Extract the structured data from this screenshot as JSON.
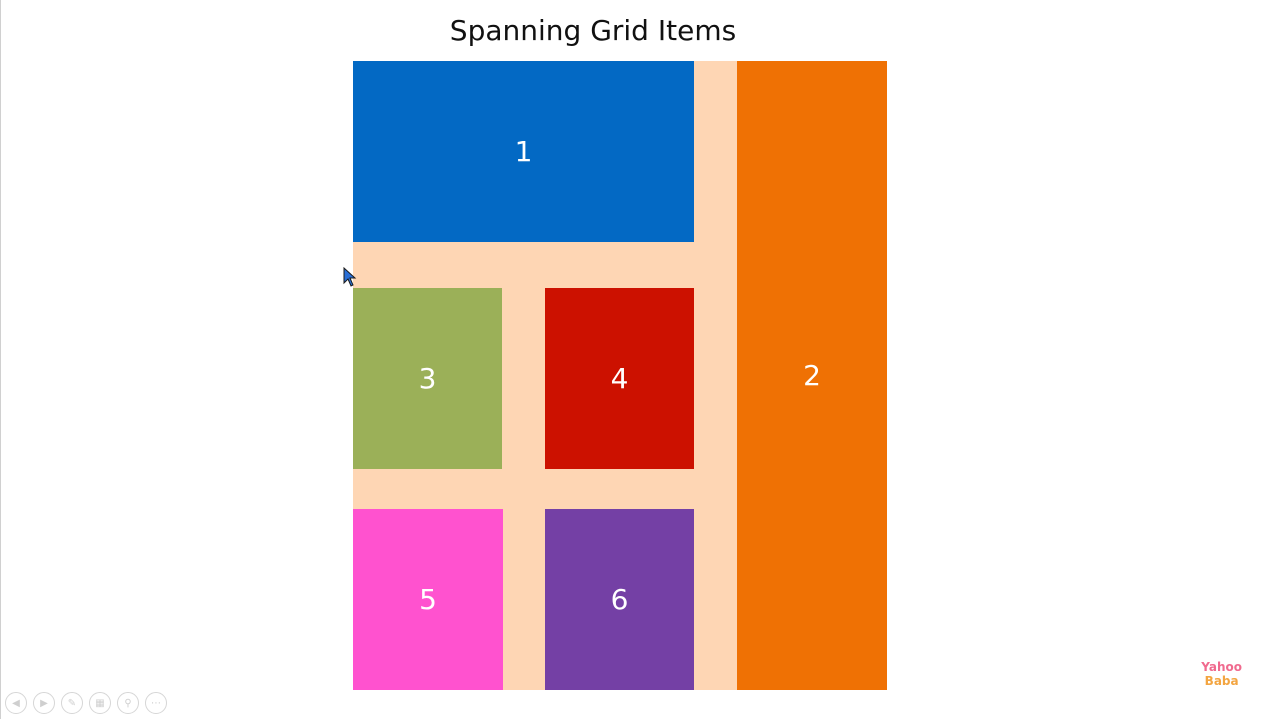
{
  "slide": {
    "title": "Spanning Grid Items"
  },
  "grid": {
    "background": "#fed6b4",
    "items": [
      {
        "label": "1",
        "color": "#0369c4"
      },
      {
        "label": "2",
        "color": "#ef7104"
      },
      {
        "label": "3",
        "color": "#9bb058"
      },
      {
        "label": "4",
        "color": "#cc1100"
      },
      {
        "label": "5",
        "color": "#ff52cf"
      },
      {
        "label": "6",
        "color": "#7440a5"
      }
    ]
  },
  "controls": {
    "icons": [
      "previous-icon",
      "next-icon",
      "pen-icon",
      "slides-icon",
      "zoom-icon",
      "more-icon"
    ]
  },
  "logo": {
    "line1": "Yahoo",
    "line2": "Baba"
  }
}
